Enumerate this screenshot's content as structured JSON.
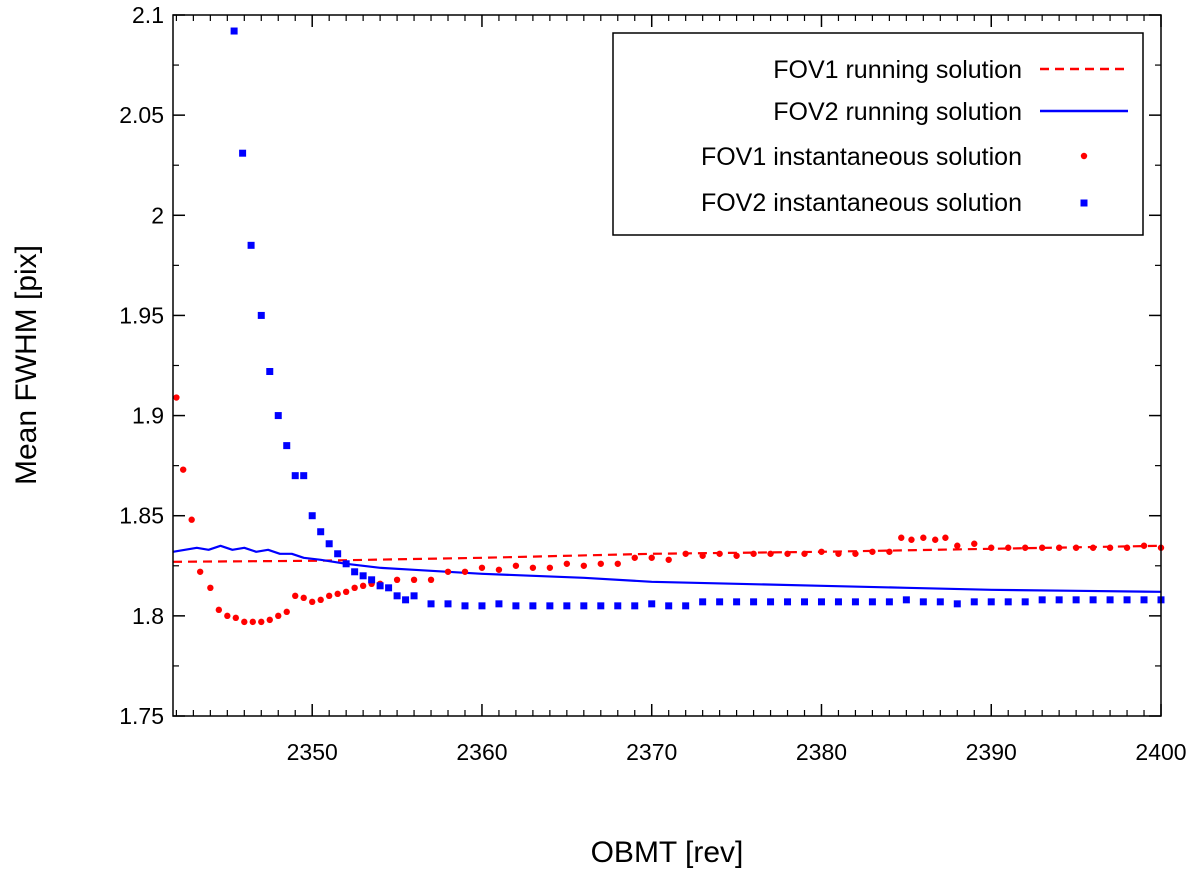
{
  "chart_data": {
    "type": "line",
    "title": "",
    "xlabel": "OBMT [rev]",
    "ylabel": "Mean FWHM [pix]",
    "xlim": [
      2341.8,
      2400
    ],
    "ylim": [
      1.75,
      2.1
    ],
    "x_ticks": [
      2350,
      2360,
      2370,
      2380,
      2390,
      2400
    ],
    "x_tick_labels": [
      "2350",
      "2360",
      "2370",
      "2380",
      "2390",
      "2400"
    ],
    "y_ticks": [
      1.75,
      1.8,
      1.85,
      1.9,
      1.95,
      2.0,
      2.05,
      2.1
    ],
    "y_tick_labels": [
      "1.75",
      "1.8",
      "1.85",
      "1.9",
      "1.95",
      "2",
      "2.05",
      "2.1"
    ],
    "grid": false,
    "legend_position": "top-right",
    "colors": {
      "fov1": "#ff0000",
      "fov2": "#0000ff"
    },
    "series": [
      {
        "name": "FOV1 running solution",
        "style": "dashed-line",
        "color": "#ff0000",
        "x": [
          2341.8,
          2350,
          2360,
          2370,
          2380,
          2390,
          2400
        ],
        "y": [
          1.827,
          1.8275,
          1.829,
          1.831,
          1.832,
          1.8335,
          1.835
        ]
      },
      {
        "name": "FOV2 running solution",
        "style": "solid-line",
        "color": "#0000ff",
        "x": [
          2341.8,
          2342.5,
          2343.2,
          2343.9,
          2344.6,
          2345.3,
          2346,
          2346.7,
          2347.4,
          2348.1,
          2348.8,
          2349.5,
          2350.5,
          2352,
          2354,
          2356,
          2358,
          2360,
          2363,
          2366,
          2370,
          2375,
          2380,
          2385,
          2390,
          2395,
          2400
        ],
        "y": [
          1.832,
          1.833,
          1.834,
          1.833,
          1.835,
          1.833,
          1.834,
          1.832,
          1.833,
          1.831,
          1.831,
          1.829,
          1.828,
          1.826,
          1.824,
          1.823,
          1.822,
          1.821,
          1.82,
          1.819,
          1.817,
          1.816,
          1.815,
          1.814,
          1.813,
          1.8125,
          1.812
        ]
      },
      {
        "name": "FOV1 instantaneous solution",
        "style": "dots",
        "color": "#ff0000",
        "x": [
          2342,
          2342.4,
          2342.9,
          2343.4,
          2344,
          2344.5,
          2345,
          2345.5,
          2346,
          2346.5,
          2347,
          2347.5,
          2348,
          2348.5,
          2349,
          2349.5,
          2350,
          2350.5,
          2351,
          2351.5,
          2352,
          2352.5,
          2353,
          2353.5,
          2354,
          2355,
          2356,
          2357,
          2358,
          2359,
          2360,
          2361,
          2362,
          2363,
          2364,
          2365,
          2366,
          2367,
          2368,
          2369,
          2370,
          2371,
          2372,
          2373,
          2374,
          2375,
          2376,
          2377,
          2378,
          2379,
          2380,
          2381,
          2382,
          2383,
          2384,
          2384.7,
          2385.3,
          2386,
          2386.7,
          2387.3,
          2388,
          2389,
          2390,
          2391,
          2392,
          2393,
          2394,
          2395,
          2396,
          2397,
          2398,
          2399,
          2400
        ],
        "y": [
          1.909,
          1.873,
          1.848,
          1.822,
          1.814,
          1.803,
          1.8,
          1.799,
          1.797,
          1.797,
          1.797,
          1.798,
          1.8,
          1.802,
          1.81,
          1.809,
          1.807,
          1.808,
          1.81,
          1.811,
          1.812,
          1.814,
          1.815,
          1.816,
          1.816,
          1.818,
          1.818,
          1.818,
          1.822,
          1.822,
          1.824,
          1.823,
          1.825,
          1.824,
          1.824,
          1.826,
          1.825,
          1.826,
          1.826,
          1.829,
          1.829,
          1.828,
          1.831,
          1.83,
          1.831,
          1.83,
          1.831,
          1.831,
          1.831,
          1.831,
          1.832,
          1.831,
          1.831,
          1.832,
          1.832,
          1.839,
          1.838,
          1.839,
          1.838,
          1.839,
          1.835,
          1.836,
          1.834,
          1.834,
          1.834,
          1.834,
          1.834,
          1.834,
          1.834,
          1.834,
          1.834,
          1.835,
          1.834
        ]
      },
      {
        "name": "FOV2 instantaneous solution",
        "style": "squares",
        "color": "#0000ff",
        "x": [
          2345.4,
          2345.9,
          2346.4,
          2347,
          2347.5,
          2348,
          2348.5,
          2349,
          2349.5,
          2350,
          2350.5,
          2351,
          2351.5,
          2352,
          2352.5,
          2353,
          2353.5,
          2354,
          2354.5,
          2355,
          2355.5,
          2356,
          2357,
          2358,
          2359,
          2360,
          2361,
          2362,
          2363,
          2364,
          2365,
          2366,
          2367,
          2368,
          2369,
          2370,
          2371,
          2372,
          2373,
          2374,
          2375,
          2376,
          2377,
          2378,
          2379,
          2380,
          2381,
          2382,
          2383,
          2384,
          2385,
          2386,
          2387,
          2388,
          2389,
          2390,
          2391,
          2392,
          2393,
          2394,
          2395,
          2396,
          2397,
          2398,
          2399,
          2400
        ],
        "y": [
          2.092,
          2.031,
          1.985,
          1.95,
          1.922,
          1.9,
          1.885,
          1.87,
          1.87,
          1.85,
          1.842,
          1.836,
          1.831,
          1.826,
          1.822,
          1.82,
          1.818,
          1.815,
          1.814,
          1.81,
          1.808,
          1.81,
          1.806,
          1.806,
          1.805,
          1.805,
          1.806,
          1.805,
          1.805,
          1.805,
          1.805,
          1.805,
          1.805,
          1.805,
          1.805,
          1.806,
          1.805,
          1.805,
          1.807,
          1.807,
          1.807,
          1.807,
          1.807,
          1.807,
          1.807,
          1.807,
          1.807,
          1.807,
          1.807,
          1.807,
          1.808,
          1.807,
          1.807,
          1.806,
          1.807,
          1.807,
          1.807,
          1.807,
          1.808,
          1.808,
          1.808,
          1.808,
          1.808,
          1.808,
          1.808,
          1.808
        ]
      }
    ]
  }
}
